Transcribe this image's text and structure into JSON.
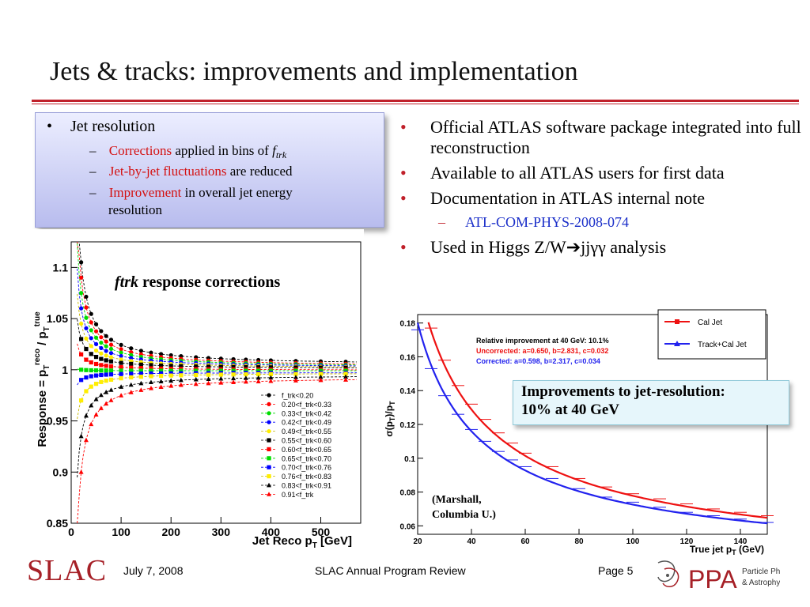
{
  "slide": {
    "title": "Jets & tracks: improvements and implementation"
  },
  "left_box": {
    "heading": "Jet resolution",
    "sub1_red": "Corrections",
    "sub1_rest": " applied in bins of ",
    "sub1_f": "f",
    "sub1_trk": "trk",
    "sub2_red": "Jet-by-jet fluctuations",
    "sub2_rest": " are reduced",
    "sub3_red": "Improvement",
    "sub3_rest": " in overall jet energy",
    "sub3_line2": "resolution"
  },
  "right_list": {
    "item1": "Official ATLAS software package integrated into full reconstruction",
    "item2": "Available to all ATLAS users for first data",
    "item3": "Documentation in ATLAS internal note",
    "item3_sub": "ATL-COM-PHYS-2008-074",
    "item4": "Used in Higgs Z/W➔jjγγ analysis"
  },
  "improvement_box": {
    "line1": "Improvements to jet-resolution:",
    "line2": "10% at 40 GeV"
  },
  "footer": {
    "date": "July 7, 2008",
    "center": "SLAC Annual Program Review",
    "page": "Page 5",
    "slac_logo": "SLAC",
    "ppa_logo": "PPA",
    "ppa_text1": "Particle Physics",
    "ppa_text2": "& Astrophysics"
  },
  "colors": {
    "accent_red": "#c0202a",
    "link_blue": "#1b2fc9"
  },
  "chart_data": [
    {
      "type": "scatter",
      "title_italic": "ftrk",
      "title_rest": " response corrections",
      "ylabel": "Response = p_T^reco / p_T^true",
      "xlabel": "Jet Reco p_T [GeV]",
      "xlim": [
        0,
        580
      ],
      "ylim": [
        0.85,
        1.125
      ],
      "x_ticks": [
        0,
        100,
        200,
        300,
        400,
        500
      ],
      "y_ticks": [
        0.85,
        0.9,
        0.95,
        1,
        1.05,
        1.1
      ],
      "y_tick_labels": [
        "0.85",
        "0.9",
        "0.95",
        "1",
        "1.05",
        "1.1"
      ],
      "x_points": [
        20,
        30,
        40,
        50,
        60,
        70,
        80,
        100,
        120,
        140,
        160,
        180,
        200,
        220,
        250,
        275,
        300,
        325,
        350,
        375,
        400,
        450,
        500,
        550
      ],
      "legend_placement": "lower-right",
      "series": [
        {
          "name": "f_trk<0.20",
          "color": "#000000",
          "marker": "circle",
          "response_at_20": 1.105,
          "response_at_500": 1.008
        },
        {
          "name": "0.20<f_trk<0.33",
          "color": "#ff0000",
          "marker": "circle",
          "response_at_20": 1.09,
          "response_at_500": 1.006
        },
        {
          "name": "0.33<f_trk<0.42",
          "color": "#00dd00",
          "marker": "circle",
          "response_at_20": 1.075,
          "response_at_500": 1.005
        },
        {
          "name": "0.42<f_trk<0.49",
          "color": "#0000ff",
          "marker": "circle",
          "response_at_20": 1.06,
          "response_at_500": 1.004
        },
        {
          "name": "0.49<f_trk<0.55",
          "color": "#ffee00",
          "marker": "circle",
          "response_at_20": 1.045,
          "response_at_500": 1.003
        },
        {
          "name": "0.55<f_trk<0.60",
          "color": "#000000",
          "marker": "square",
          "response_at_20": 1.03,
          "response_at_500": 1.002
        },
        {
          "name": "0.60<f_trk<0.65",
          "color": "#ff0000",
          "marker": "square",
          "response_at_20": 1.015,
          "response_at_500": 1.0
        },
        {
          "name": "0.65<f_trk<0.70",
          "color": "#00dd00",
          "marker": "square",
          "response_at_20": 1.0,
          "response_at_500": 0.999
        },
        {
          "name": "0.70<f_trk<0.76",
          "color": "#0000ff",
          "marker": "square",
          "response_at_20": 0.99,
          "response_at_500": 0.997
        },
        {
          "name": "0.76<f_trk<0.83",
          "color": "#ffee00",
          "marker": "square",
          "response_at_20": 0.97,
          "response_at_500": 0.996
        },
        {
          "name": "0.83<f_trk<0.91",
          "color": "#000000",
          "marker": "triangle",
          "response_at_20": 0.935,
          "response_at_500": 0.993
        },
        {
          "name": "0.91<f_trk",
          "color": "#ff0000",
          "marker": "triangle",
          "response_at_20": 0.9,
          "response_at_500": 0.99
        }
      ]
    },
    {
      "type": "line",
      "ylabel": "σ(p_T)/p_T",
      "xlabel": "True jet p_T (GeV)",
      "xlim": [
        20,
        150
      ],
      "ylim": [
        0.055,
        0.185
      ],
      "x_ticks": [
        20,
        40,
        60,
        80,
        100,
        120,
        140
      ],
      "y_ticks": [
        0.06,
        0.08,
        0.1,
        0.12,
        0.14,
        0.16,
        0.18
      ],
      "y_tick_labels": [
        "0.06",
        "0.08",
        "0.1",
        "0.12",
        "0.14",
        "0.16",
        "0.18"
      ],
      "fit_text_1": "Relative improvement at 40 GeV: 10.1%",
      "fit_text_2": "Uncorrected: a=0.650, b=2.831, c=0.032",
      "fit_text_3": "Corrected: a=0.598, b=2.317, c=0.034",
      "note": "(Marshall, Columbia U.)",
      "note_line1": "(Marshall,",
      "note_line2": "Columbia U.)",
      "legend_placement": "top-right",
      "series": [
        {
          "name": "Cal Jet",
          "color": "#ee1111",
          "a": 0.65,
          "b": 2.831,
          "c": 0.032,
          "x": [
            25,
            30,
            35,
            40,
            45,
            50,
            55,
            60,
            70,
            80,
            90,
            100,
            110,
            120,
            130,
            140,
            150
          ],
          "y": [
            0.177,
            0.158,
            0.143,
            0.132,
            0.123,
            0.115,
            0.109,
            0.103,
            0.095,
            0.088,
            0.083,
            0.079,
            0.076,
            0.073,
            0.07,
            0.068,
            0.066
          ]
        },
        {
          "name": "Track+Cal Jet",
          "color": "#2222ee",
          "a": 0.598,
          "b": 2.317,
          "c": 0.034,
          "x": [
            20,
            25,
            30,
            35,
            40,
            45,
            50,
            55,
            60,
            70,
            80,
            90,
            100,
            110,
            120,
            130,
            140,
            150
          ],
          "y": [
            0.176,
            0.153,
            0.137,
            0.126,
            0.117,
            0.11,
            0.104,
            0.099,
            0.095,
            0.088,
            0.082,
            0.077,
            0.074,
            0.071,
            0.068,
            0.066,
            0.064,
            0.062
          ]
        }
      ]
    }
  ]
}
